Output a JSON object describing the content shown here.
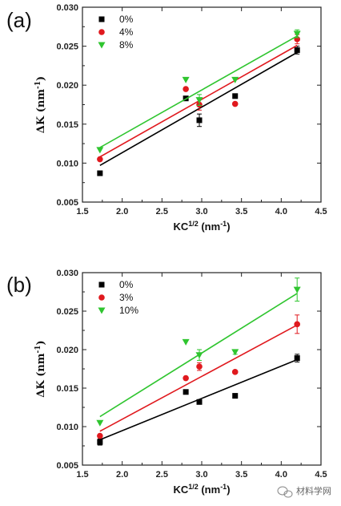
{
  "chart_data": [
    {
      "panel": "(a)",
      "type": "scatter",
      "xlabel": "KC",
      "xlabel_sup": "1/2",
      "xlabel_unit": " (nm",
      "xlabel_unit_sup": "-1",
      "xlabel_close": ")",
      "ylabel": "ΔK (nm",
      "ylabel_sup": "-1",
      "ylabel_close": ")",
      "xlim": [
        1.5,
        4.5
      ],
      "ylim": [
        0.005,
        0.03
      ],
      "xticks": [
        "1.5",
        "2.0",
        "2.5",
        "3.0",
        "3.5",
        "4.0",
        "4.5"
      ],
      "yticks": [
        "0.005",
        "0.010",
        "0.015",
        "0.020",
        "0.025",
        "0.030"
      ],
      "legend_position": "top-left",
      "grid": false,
      "series": [
        {
          "name": "0%",
          "color": "#000000",
          "marker": "square",
          "points": [
            [
              1.72,
              0.0087
            ],
            [
              2.8,
              0.0183
            ],
            [
              2.97,
              0.0155
            ],
            [
              3.42,
              0.0186
            ],
            [
              4.2,
              0.0245
            ]
          ],
          "errors": [
            0,
            0,
            0.0008,
            0,
            0.0005
          ],
          "fit": [
            [
              1.72,
              0.0097
            ],
            [
              4.2,
              0.0242
            ]
          ]
        },
        {
          "name": "4%",
          "color": "#e0191e",
          "marker": "circle",
          "points": [
            [
              1.72,
              0.0105
            ],
            [
              2.8,
              0.0195
            ],
            [
              2.97,
              0.0175
            ],
            [
              3.42,
              0.0176
            ],
            [
              4.2,
              0.0259
            ]
          ],
          "errors": [
            0,
            0,
            0.0007,
            0,
            0.0006
          ],
          "fit": [
            [
              1.72,
              0.0108
            ],
            [
              4.2,
              0.0251
            ]
          ]
        },
        {
          "name": "8%",
          "color": "#2fc52f",
          "marker": "triangle-down",
          "points": [
            [
              1.72,
              0.0117
            ],
            [
              2.8,
              0.0207
            ],
            [
              2.97,
              0.0181
            ],
            [
              3.42,
              0.0207
            ],
            [
              4.2,
              0.0266
            ]
          ],
          "errors": [
            0,
            0,
            0.0007,
            0,
            0.0005
          ],
          "fit": [
            [
              1.72,
              0.012
            ],
            [
              4.2,
              0.0263
            ]
          ]
        }
      ]
    },
    {
      "panel": "(b)",
      "type": "scatter",
      "xlabel": "KC",
      "xlabel_sup": "1/2",
      "xlabel_unit": " (nm",
      "xlabel_unit_sup": "-1",
      "xlabel_close": ")",
      "ylabel": "ΔK (nm",
      "ylabel_sup": "-1",
      "ylabel_close": ")",
      "xlim": [
        1.5,
        4.5
      ],
      "ylim": [
        0.005,
        0.03
      ],
      "xticks": [
        "1.5",
        "2.0",
        "2.5",
        "3.0",
        "3.5",
        "4.0",
        "4.5"
      ],
      "yticks": [
        "0.005",
        "0.010",
        "0.015",
        "0.020",
        "0.025",
        "0.030"
      ],
      "legend_position": "top-left",
      "grid": false,
      "series": [
        {
          "name": "0%",
          "color": "#000000",
          "marker": "square",
          "points": [
            [
              1.72,
              0.008
            ],
            [
              2.8,
              0.0145
            ],
            [
              2.97,
              0.0132
            ],
            [
              3.42,
              0.014
            ],
            [
              4.2,
              0.0189
            ]
          ],
          "errors": [
            0.0004,
            0,
            0,
            0,
            0.0005
          ],
          "fit": [
            [
              1.72,
              0.0083
            ],
            [
              4.2,
              0.0187
            ]
          ]
        },
        {
          "name": "3%",
          "color": "#e0191e",
          "marker": "circle",
          "points": [
            [
              1.72,
              0.0088
            ],
            [
              2.8,
              0.0163
            ],
            [
              2.97,
              0.0178
            ],
            [
              3.42,
              0.0171
            ],
            [
              4.2,
              0.0233
            ]
          ],
          "errors": [
            0,
            0,
            0.0005,
            0,
            0.0012
          ],
          "fit": [
            [
              1.72,
              0.0094
            ],
            [
              4.2,
              0.0232
            ]
          ]
        },
        {
          "name": "10%",
          "color": "#2fc52f",
          "marker": "triangle-down",
          "points": [
            [
              1.72,
              0.0105
            ],
            [
              2.8,
              0.021
            ],
            [
              2.97,
              0.0193
            ],
            [
              3.42,
              0.0197
            ],
            [
              4.2,
              0.0278
            ]
          ],
          "errors": [
            0,
            0,
            0.0007,
            0.0003,
            0.0015
          ],
          "fit": [
            [
              1.72,
              0.0113
            ],
            [
              4.2,
              0.0273
            ]
          ]
        }
      ]
    }
  ],
  "watermark": {
    "text": "材料学网",
    "icon": "wechat-icon"
  }
}
